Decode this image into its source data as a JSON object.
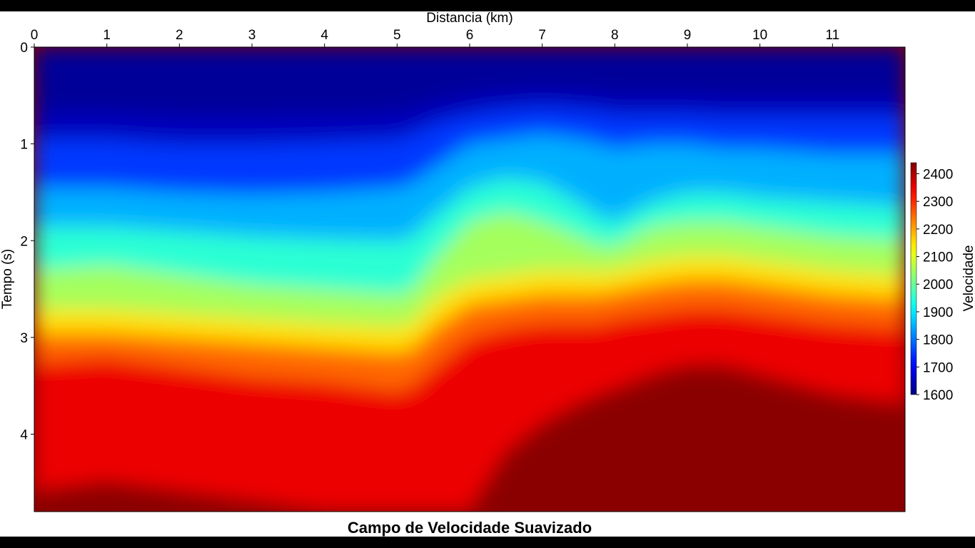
{
  "chart_data": {
    "type": "heatmap",
    "title": "Campo de Velocidade Suavizado",
    "xlabel": "Distancia (km)",
    "ylabel": "Tempo (s)",
    "colorbar_label": "Velocidade",
    "x_axis_position": "top",
    "colorbar_position": "right",
    "xlim": [
      0,
      12
    ],
    "ylim": [
      0,
      4.8
    ],
    "x_ticks": [
      0,
      1,
      2,
      3,
      4,
      5,
      6,
      7,
      8,
      9,
      10,
      11
    ],
    "y_ticks": [
      0,
      1,
      2,
      3,
      4
    ],
    "colorbar_range": [
      1600,
      2440
    ],
    "colorbar_ticks": [
      1600,
      1700,
      1800,
      1900,
      2000,
      2100,
      2200,
      2300,
      2400
    ],
    "colormap": "jet",
    "grid": false,
    "iso_contours": {
      "x": [
        0,
        1,
        2,
        3,
        4,
        5,
        5.2,
        5.5,
        6,
        6.5,
        7,
        7.5,
        7.8,
        8,
        8.5,
        9,
        9.5,
        10,
        11,
        12
      ],
      "levels": [
        {
          "value": 1700,
          "t": [
            0.95,
            0.95,
            1.0,
            1.0,
            0.98,
            0.95,
            0.9,
            0.8,
            0.7,
            0.65,
            0.62,
            0.65,
            0.67,
            0.7,
            0.7,
            0.7,
            0.72,
            0.72,
            0.72,
            0.72
          ]
        },
        {
          "value": 1800,
          "t": [
            1.45,
            1.45,
            1.5,
            1.52,
            1.5,
            1.45,
            1.4,
            1.25,
            1.0,
            0.95,
            0.9,
            0.95,
            1.0,
            1.05,
            1.0,
            1.0,
            1.05,
            1.05,
            1.1,
            1.1
          ]
        },
        {
          "value": 1900,
          "t": [
            1.85,
            1.85,
            1.9,
            1.95,
            1.98,
            2.0,
            1.95,
            1.75,
            1.45,
            1.35,
            1.4,
            1.6,
            1.75,
            1.8,
            1.6,
            1.5,
            1.5,
            1.55,
            1.6,
            1.65
          ]
        },
        {
          "value": 2000,
          "t": [
            2.3,
            2.25,
            2.35,
            2.45,
            2.5,
            2.55,
            2.5,
            2.2,
            1.8,
            1.7,
            1.8,
            1.95,
            2.05,
            2.05,
            1.85,
            1.8,
            1.8,
            1.85,
            1.95,
            2.0
          ]
        },
        {
          "value": 2100,
          "t": [
            2.7,
            2.7,
            2.75,
            2.8,
            2.85,
            2.88,
            2.85,
            2.6,
            2.4,
            2.35,
            2.3,
            2.3,
            2.32,
            2.3,
            2.2,
            2.15,
            2.15,
            2.2,
            2.3,
            2.35
          ]
        },
        {
          "value": 2200,
          "t": [
            2.95,
            2.95,
            3.0,
            3.05,
            3.1,
            3.15,
            3.12,
            2.9,
            2.65,
            2.6,
            2.55,
            2.55,
            2.55,
            2.52,
            2.45,
            2.4,
            2.4,
            2.45,
            2.55,
            2.6
          ]
        },
        {
          "value": 2300,
          "t": [
            3.25,
            3.2,
            3.3,
            3.4,
            3.45,
            3.55,
            3.5,
            3.3,
            3.0,
            2.9,
            2.85,
            2.85,
            2.85,
            2.8,
            2.75,
            2.7,
            2.7,
            2.75,
            2.85,
            2.9
          ]
        },
        {
          "value": 2400,
          "t": [
            4.6,
            4.5,
            4.6,
            4.7,
            4.8,
            4.8,
            4.8,
            4.8,
            4.8,
            4.2,
            3.9,
            3.7,
            3.6,
            3.55,
            3.4,
            3.3,
            3.3,
            3.4,
            3.6,
            3.7
          ]
        }
      ]
    }
  }
}
